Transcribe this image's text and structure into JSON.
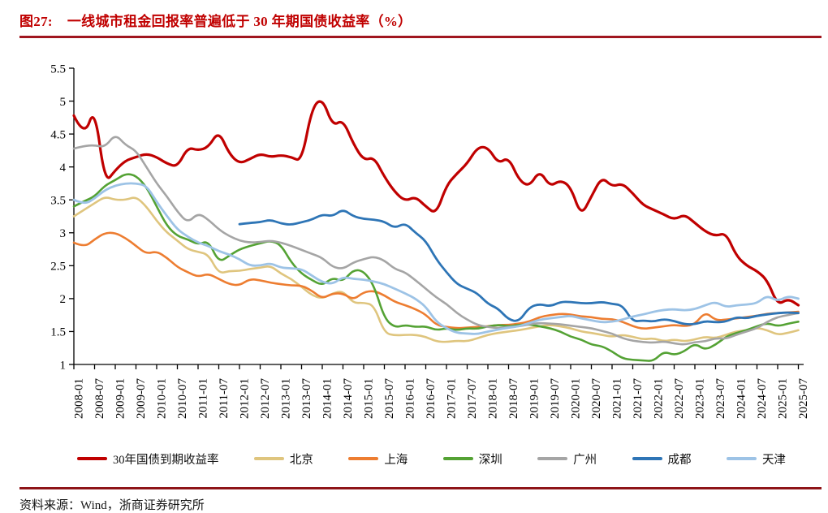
{
  "title": {
    "label": "图27:",
    "text": "一线城市租金回报率普遍低于 30 年期国债收益率（%）"
  },
  "source": {
    "prefix": "资料来源：",
    "text": "Wind，浙商证券研究所"
  },
  "colors": {
    "title_red": "#C00000",
    "rule_top": "#A0161F",
    "rule_bottom": "#8E1418",
    "axis": "#000000"
  },
  "chart_data": {
    "type": "line",
    "title": "一线城市租金回报率普遍低于 30 年期国债收益率（%）",
    "xlabel": "",
    "ylabel": "",
    "ylim": [
      1,
      5.5
    ],
    "yticks": [
      "5.5",
      "5",
      "4.5",
      "4",
      "3.5",
      "3",
      "2.5",
      "2",
      "1.5",
      "1"
    ],
    "ytick_values": [
      5.5,
      5,
      4.5,
      4,
      3.5,
      3,
      2.5,
      2,
      1.5,
      1
    ],
    "grid": false,
    "legend_position": "bottom",
    "x_tick_labels": [
      "2008-01",
      "2008-07",
      "2009-01",
      "2009-07",
      "2010-01",
      "2010-07",
      "2011-01",
      "2011-07",
      "2012-01",
      "2012-07",
      "2013-01",
      "2013-07",
      "2014-01",
      "2014-07",
      "2015-01",
      "2015-07",
      "2016-01",
      "2016-07",
      "2017-01",
      "2017-07",
      "2018-01",
      "2018-07",
      "2019-01",
      "2019-07",
      "2020-01",
      "2020-07",
      "2021-01",
      "2021-07",
      "2022-01",
      "2022-07",
      "2023-01",
      "2023-07",
      "2024-01",
      "2024-07",
      "2025-01",
      "2025-07"
    ],
    "x_tick_step_months": 6,
    "data_step_months": 3,
    "total_months": 210,
    "series": [
      {
        "name": "30年国债到期收益率",
        "color": "#C00000",
        "width": 3.2,
        "values": [
          4.78,
          4.45,
          4.92,
          3.75,
          3.95,
          4.1,
          4.15,
          4.2,
          4.15,
          4.05,
          4.0,
          4.3,
          4.25,
          4.3,
          4.55,
          4.2,
          4.05,
          4.12,
          4.2,
          4.15,
          4.18,
          4.15,
          4.08,
          4.9,
          5.05,
          4.62,
          4.72,
          4.35,
          4.1,
          4.15,
          3.85,
          3.62,
          3.48,
          3.55,
          3.4,
          3.28,
          3.72,
          3.9,
          4.05,
          4.3,
          4.3,
          4.05,
          4.15,
          3.8,
          3.7,
          3.95,
          3.7,
          3.8,
          3.7,
          3.25,
          3.55,
          3.85,
          3.7,
          3.75,
          3.6,
          3.42,
          3.35,
          3.28,
          3.2,
          3.28,
          3.15,
          3.02,
          2.95,
          3.0,
          2.65,
          2.5,
          2.42,
          2.28,
          1.9,
          2.0,
          1.9
        ]
      },
      {
        "name": "北京",
        "color": "#DFC57E",
        "width": 2.6,
        "values": [
          3.25,
          3.35,
          3.45,
          3.55,
          3.5,
          3.5,
          3.55,
          3.4,
          3.18,
          3.0,
          2.88,
          2.75,
          2.71,
          2.67,
          2.38,
          2.42,
          2.42,
          2.45,
          2.47,
          2.5,
          2.38,
          2.3,
          2.18,
          2.05,
          2.0,
          2.08,
          2.12,
          1.93,
          1.94,
          1.9,
          1.48,
          1.44,
          1.45,
          1.45,
          1.42,
          1.35,
          1.34,
          1.36,
          1.35,
          1.4,
          1.45,
          1.48,
          1.5,
          1.52,
          1.55,
          1.58,
          1.6,
          1.58,
          1.55,
          1.5,
          1.48,
          1.45,
          1.42,
          1.45,
          1.42,
          1.38,
          1.4,
          1.35,
          1.38,
          1.35,
          1.38,
          1.42,
          1.4,
          1.45,
          1.5,
          1.52,
          1.56,
          1.52,
          1.45,
          1.48,
          1.52
        ]
      },
      {
        "name": "上海",
        "color": "#ED7D31",
        "width": 2.6,
        "values": [
          2.85,
          2.78,
          2.9,
          3.0,
          3.0,
          2.92,
          2.8,
          2.68,
          2.72,
          2.62,
          2.48,
          2.4,
          2.33,
          2.38,
          2.3,
          2.22,
          2.2,
          2.3,
          2.28,
          2.24,
          2.22,
          2.2,
          2.2,
          2.12,
          2.0,
          2.08,
          2.08,
          1.98,
          2.1,
          2.12,
          2.05,
          1.95,
          1.9,
          1.84,
          1.76,
          1.6,
          1.57,
          1.55,
          1.56,
          1.57,
          1.58,
          1.6,
          1.6,
          1.62,
          1.65,
          1.72,
          1.75,
          1.77,
          1.76,
          1.73,
          1.72,
          1.69,
          1.69,
          1.65,
          1.58,
          1.54,
          1.56,
          1.58,
          1.6,
          1.58,
          1.61,
          1.8,
          1.67,
          1.68,
          1.7,
          1.72,
          1.74,
          1.77,
          1.78,
          1.79,
          1.8
        ]
      },
      {
        "name": "深圳",
        "color": "#54A234",
        "width": 2.6,
        "values": [
          3.4,
          3.48,
          3.55,
          3.72,
          3.8,
          3.9,
          3.87,
          3.7,
          3.4,
          3.1,
          2.95,
          2.9,
          2.82,
          2.88,
          2.55,
          2.65,
          2.75,
          2.8,
          2.84,
          2.88,
          2.82,
          2.55,
          2.38,
          2.28,
          2.2,
          2.32,
          2.26,
          2.44,
          2.42,
          2.2,
          1.7,
          1.56,
          1.6,
          1.57,
          1.58,
          1.52,
          1.55,
          1.52,
          1.55,
          1.54,
          1.58,
          1.6,
          1.58,
          1.6,
          1.61,
          1.58,
          1.55,
          1.5,
          1.42,
          1.38,
          1.3,
          1.28,
          1.2,
          1.09,
          1.07,
          1.06,
          1.05,
          1.2,
          1.14,
          1.2,
          1.32,
          1.22,
          1.3,
          1.42,
          1.48,
          1.52,
          1.58,
          1.63,
          1.58,
          1.62,
          1.65
        ]
      },
      {
        "name": "广州",
        "color": "#A5A5A5",
        "width": 2.6,
        "values": [
          4.28,
          4.32,
          4.33,
          4.3,
          4.5,
          4.33,
          4.25,
          4.0,
          3.75,
          3.55,
          3.32,
          3.15,
          3.3,
          3.2,
          3.05,
          2.95,
          2.88,
          2.85,
          2.86,
          2.88,
          2.85,
          2.8,
          2.74,
          2.68,
          2.62,
          2.48,
          2.45,
          2.55,
          2.6,
          2.64,
          2.58,
          2.45,
          2.4,
          2.28,
          2.15,
          2.02,
          1.92,
          1.78,
          1.68,
          1.6,
          1.57,
          1.55,
          1.57,
          1.58,
          1.61,
          1.63,
          1.62,
          1.61,
          1.59,
          1.57,
          1.55,
          1.51,
          1.47,
          1.4,
          1.36,
          1.34,
          1.33,
          1.35,
          1.32,
          1.3,
          1.34,
          1.35,
          1.4,
          1.39,
          1.45,
          1.5,
          1.55,
          1.65,
          1.72,
          1.75,
          1.78
        ]
      },
      {
        "name": "成都",
        "color": "#2E75B6",
        "width": 2.8,
        "values": [
          null,
          null,
          null,
          null,
          null,
          null,
          null,
          null,
          null,
          null,
          null,
          null,
          null,
          null,
          null,
          null,
          3.13,
          3.15,
          3.16,
          3.2,
          3.14,
          3.12,
          3.16,
          3.2,
          3.28,
          3.25,
          3.36,
          3.25,
          3.21,
          3.2,
          3.17,
          3.07,
          3.15,
          3.0,
          2.88,
          2.6,
          2.4,
          2.22,
          2.15,
          2.08,
          1.92,
          1.85,
          1.68,
          1.65,
          1.87,
          1.92,
          1.88,
          1.95,
          1.95,
          1.93,
          1.93,
          1.95,
          1.92,
          1.9,
          1.65,
          1.67,
          1.65,
          1.69,
          1.66,
          1.61,
          1.61,
          1.66,
          1.64,
          1.65,
          1.72,
          1.7,
          1.74,
          1.76,
          1.78,
          1.79,
          1.78
        ]
      },
      {
        "name": "天津",
        "color": "#9DC3E6",
        "width": 2.8,
        "values": [
          3.5,
          3.43,
          3.52,
          3.65,
          3.72,
          3.75,
          3.75,
          3.72,
          3.47,
          3.25,
          3.05,
          2.94,
          2.85,
          2.8,
          2.72,
          2.67,
          2.6,
          2.5,
          2.5,
          2.54,
          2.47,
          2.46,
          2.45,
          2.35,
          2.25,
          2.22,
          2.33,
          2.3,
          2.29,
          2.26,
          2.22,
          2.15,
          2.08,
          2.0,
          1.88,
          1.65,
          1.55,
          1.48,
          1.47,
          1.46,
          1.5,
          1.53,
          1.56,
          1.58,
          1.63,
          1.68,
          1.7,
          1.72,
          1.74,
          1.7,
          1.67,
          1.64,
          1.65,
          1.68,
          1.73,
          1.76,
          1.8,
          1.83,
          1.84,
          1.82,
          1.84,
          1.9,
          1.95,
          1.87,
          1.9,
          1.91,
          1.93,
          2.05,
          1.96,
          2.04,
          2.0
        ]
      }
    ]
  }
}
